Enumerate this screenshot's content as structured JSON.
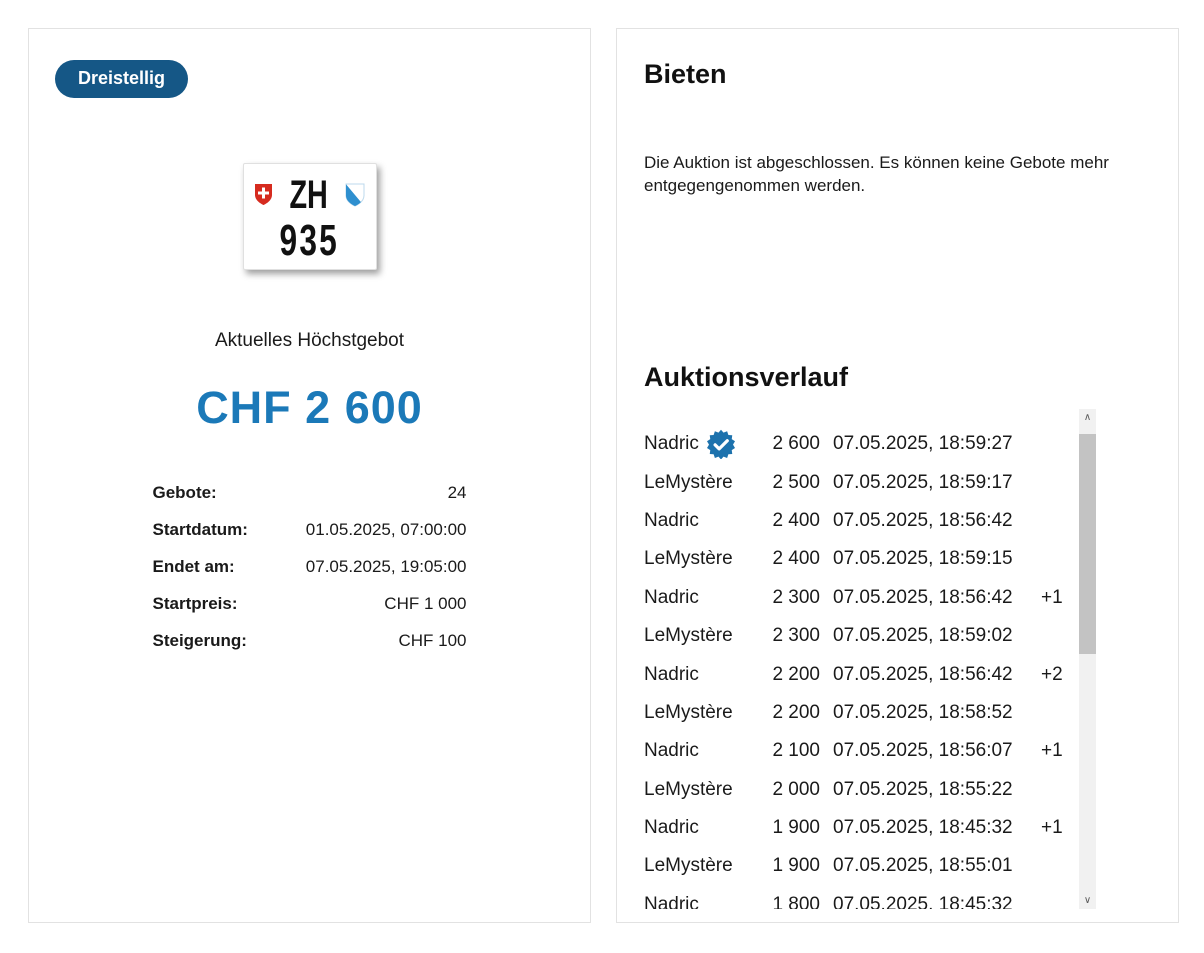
{
  "left_panel": {
    "badge": "Dreistellig",
    "plate": {
      "country_symbol": "swiss-cross",
      "canton_code": "ZH",
      "canton_symbol": "zurich-arms",
      "number": "935"
    },
    "highest_bid_label": "Aktuelles Höchstgebot",
    "highest_bid_value": "CHF 2 600",
    "details": [
      {
        "label": "Gebote:",
        "value": "24"
      },
      {
        "label": "Startdatum:",
        "value": "01.05.2025, 07:00:00"
      },
      {
        "label": "Endet am:",
        "value": "07.05.2025, 19:05:00"
      },
      {
        "label": "Startpreis:",
        "value": "CHF 1 000"
      },
      {
        "label": "Steigerung:",
        "value": "CHF 100"
      }
    ]
  },
  "right_panel": {
    "bidding_title": "Bieten",
    "closed_message": "Die Auktion ist abgeschlossen. Es können keine Gebote mehr entgegengenommen werden.",
    "history_title": "Auktionsverlauf",
    "bids": [
      {
        "bidder": "Nadric",
        "verified": true,
        "amount": "2 600",
        "timestamp": "07.05.2025, 18:59:27",
        "note": ""
      },
      {
        "bidder": "LeMystère",
        "verified": false,
        "amount": "2 500",
        "timestamp": "07.05.2025, 18:59:17",
        "note": ""
      },
      {
        "bidder": "Nadric",
        "verified": false,
        "amount": "2 400",
        "timestamp": "07.05.2025, 18:56:42",
        "note": ""
      },
      {
        "bidder": "LeMystère",
        "verified": false,
        "amount": "2 400",
        "timestamp": "07.05.2025, 18:59:15",
        "note": ""
      },
      {
        "bidder": "Nadric",
        "verified": false,
        "amount": "2 300",
        "timestamp": "07.05.2025, 18:56:42",
        "note": "+1"
      },
      {
        "bidder": "LeMystère",
        "verified": false,
        "amount": "2 300",
        "timestamp": "07.05.2025, 18:59:02",
        "note": ""
      },
      {
        "bidder": "Nadric",
        "verified": false,
        "amount": "2 200",
        "timestamp": "07.05.2025, 18:56:42",
        "note": "+2"
      },
      {
        "bidder": "LeMystère",
        "verified": false,
        "amount": "2 200",
        "timestamp": "07.05.2025, 18:58:52",
        "note": ""
      },
      {
        "bidder": "Nadric",
        "verified": false,
        "amount": "2 100",
        "timestamp": "07.05.2025, 18:56:07",
        "note": "+1"
      },
      {
        "bidder": "LeMystère",
        "verified": false,
        "amount": "2 000",
        "timestamp": "07.05.2025, 18:55:22",
        "note": ""
      },
      {
        "bidder": "Nadric",
        "verified": false,
        "amount": "1 900",
        "timestamp": "07.05.2025, 18:45:32",
        "note": "+1"
      },
      {
        "bidder": "LeMystère",
        "verified": false,
        "amount": "1 900",
        "timestamp": "07.05.2025, 18:55:01",
        "note": ""
      },
      {
        "bidder": "Nadric",
        "verified": false,
        "amount": "1 800",
        "timestamp": "07.05.2025, 18:45:32",
        "note": ""
      }
    ]
  },
  "colors": {
    "badge_background": "#155786",
    "highest_bid_blue": "#1b79b8",
    "verified_badge_blue": "#1d72ad",
    "swiss_shield_red": "#d62b1f",
    "zurich_shield_blue": "#2e8fcf",
    "card_border": "#e2e2e2",
    "scrollbar_track": "#f1f1f1",
    "scrollbar_thumb": "#c3c3c3"
  }
}
